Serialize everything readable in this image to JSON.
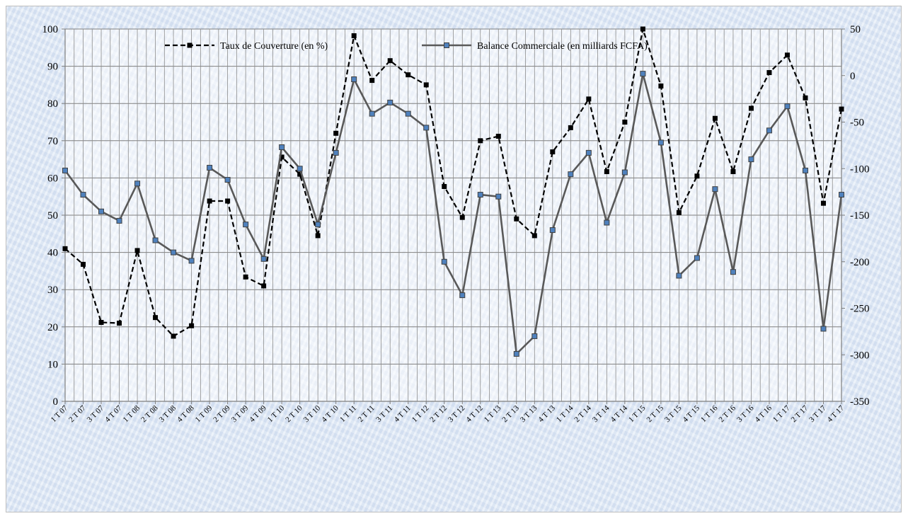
{
  "chart_data": {
    "type": "line",
    "categories": [
      "1 T 07",
      "2 T 07",
      "3 T 07",
      "4 T 07",
      "1 T 08",
      "2 T 08",
      "3 T 08",
      "4 T 08",
      "1 T 09",
      "2 T 09",
      "3 T 09",
      "4 T 09",
      "1 T 10",
      "2 T 10",
      "3 T 10",
      "4 T 10",
      "1 T 11",
      "2 T 11",
      "3 T 11",
      "4 T 11",
      "1 T 12",
      "2 T 12",
      "3 T 12",
      "4 T 12",
      "1 T 13",
      "2 T 13",
      "3 T 13",
      "4 T 13",
      "1 T 14",
      "2 T 14",
      "3 T 14",
      "4 T 14",
      "1 T 15",
      "2 T 15",
      "3 T 15",
      "4 T 15",
      "1 T 16",
      "2 T 16",
      "3 T 16",
      "4 T 16",
      "1 T 17",
      "2 T 17",
      "3 T 17",
      "4 T 17"
    ],
    "series": [
      {
        "name": "Taux de Couverture (en %)",
        "axis": "left",
        "style": "dashed",
        "marker": "square",
        "color": "#000000",
        "values": [
          41,
          36.8,
          21.2,
          21,
          40.5,
          22.5,
          17.5,
          20.3,
          53.8,
          53.8,
          33.4,
          31,
          65.6,
          61,
          44.5,
          72,
          98.2,
          86.2,
          91.5,
          87.7,
          85,
          57.7,
          49.4,
          70,
          71.2,
          49,
          44.5,
          67,
          73.5,
          81.2,
          61.7,
          75,
          100,
          84.7,
          50.7,
          60.5,
          76,
          61.7,
          78.7,
          88.3,
          93,
          81.5,
          53.2,
          78.5
        ]
      },
      {
        "name": "Balance Commerciale (en milliards FCFA)",
        "axis": "right",
        "style": "solid",
        "marker": "square",
        "color": "#595959",
        "marker_color": "#4f81bd",
        "values": [
          -102,
          -128,
          -146,
          -156,
          -116,
          -177,
          -190,
          -199,
          -99,
          -112,
          -160,
          -197,
          -77,
          -100,
          -160,
          -83,
          -4,
          -41,
          -29,
          -41,
          -56,
          -200,
          -236,
          -128,
          -130,
          -299,
          -280,
          -166,
          -106,
          -83,
          -158,
          -104,
          2,
          -72,
          -215,
          -196,
          -122,
          -211,
          -90,
          -59,
          -33,
          -102,
          -272,
          -128
        ]
      }
    ],
    "ylim_left": [
      0,
      100
    ],
    "ylim_right": [
      -350,
      50
    ],
    "yticks_left": [
      0,
      10,
      20,
      30,
      40,
      50,
      60,
      70,
      80,
      90,
      100
    ],
    "yticks_right": [
      -350,
      -300,
      -250,
      -200,
      -150,
      -100,
      -50,
      0,
      50
    ],
    "grid": true,
    "legend_position": "top"
  }
}
